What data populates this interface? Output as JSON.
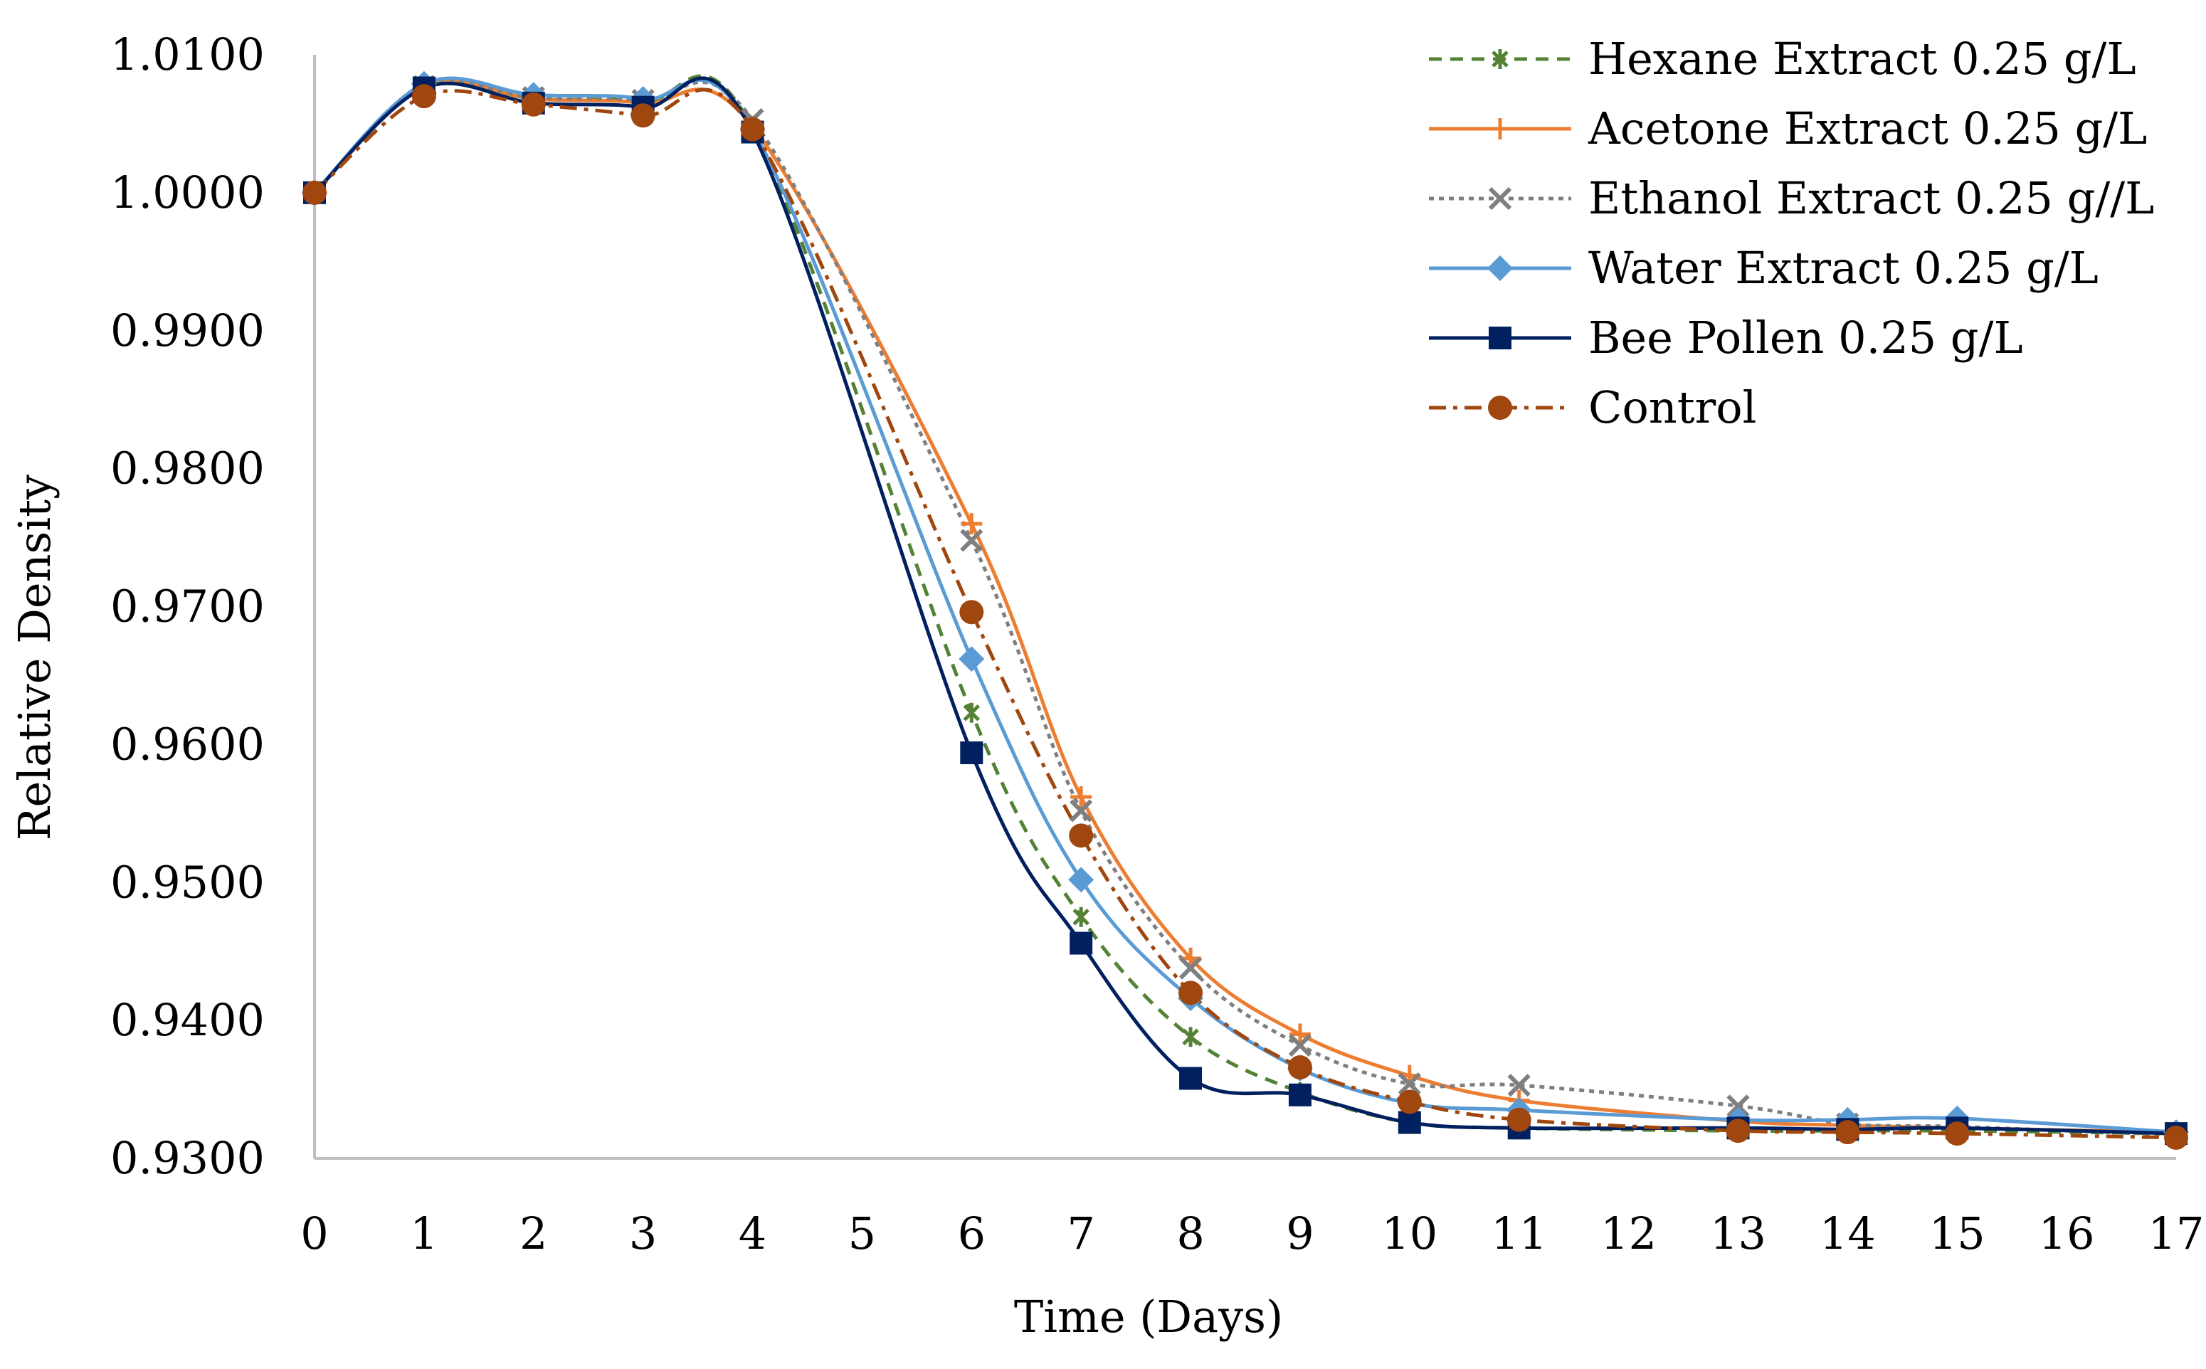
{
  "chart_data": {
    "type": "line",
    "title": "",
    "xlabel": "Time (Days)",
    "ylabel": "Relative Density",
    "xlim": [
      0,
      17
    ],
    "ylim": [
      0.93,
      1.01
    ],
    "x_ticks": [
      0,
      1,
      2,
      3,
      4,
      5,
      6,
      7,
      8,
      9,
      10,
      11,
      12,
      13,
      14,
      15,
      16,
      17
    ],
    "y_ticks": [
      0.93,
      0.94,
      0.95,
      0.96,
      0.97,
      0.98,
      0.99,
      1.0,
      1.01
    ],
    "y_tick_labels": [
      "0.9300",
      "0.9400",
      "0.9500",
      "0.9600",
      "0.9700",
      "0.9800",
      "0.9900",
      "1.0000",
      "1.0100"
    ],
    "x_tick_labels": [
      "0",
      "1",
      "2",
      "3",
      "4",
      "5",
      "6",
      "7",
      "8",
      "9",
      "10",
      "11",
      "12",
      "13",
      "14",
      "15",
      "16",
      "17"
    ],
    "grid": false,
    "legend_position": "top-right",
    "series": [
      {
        "name": "Hexane Extract 0.25 g/L",
        "color": "#548235",
        "marker": "asterisk",
        "dash": "dashed",
        "x": [
          0,
          1,
          2,
          3,
          4,
          6,
          7,
          8,
          9,
          10,
          11,
          13,
          14,
          15,
          17
        ],
        "y": [
          1.0,
          1.0077,
          1.0068,
          1.0066,
          1.0047,
          0.9623,
          0.9475,
          0.9388,
          0.9348,
          0.9326,
          0.9322,
          0.932,
          0.932,
          0.932,
          0.9318
        ]
      },
      {
        "name": "Acetone Extract 0.25 g/L",
        "color": "#ED7D31",
        "marker": "plus",
        "dash": "solid",
        "x": [
          0,
          1,
          2,
          3,
          4,
          6,
          7,
          8,
          9,
          10,
          11,
          13,
          14,
          15,
          17
        ],
        "y": [
          1.0,
          1.0078,
          1.0068,
          1.0065,
          1.0048,
          0.976,
          0.9562,
          0.9445,
          0.939,
          0.936,
          0.9342,
          0.9327,
          0.9324,
          0.9322,
          0.9319
        ]
      },
      {
        "name": "Ethanol Extract 0.25 g//L",
        "color": "#7F7F7F",
        "marker": "cross",
        "dash": "dotted",
        "x": [
          0,
          1,
          2,
          3,
          4,
          6,
          7,
          8,
          9,
          10,
          11,
          13,
          14,
          15,
          17
        ],
        "y": [
          1.0,
          1.0077,
          1.0069,
          1.0067,
          1.0053,
          0.9748,
          0.9552,
          0.9438,
          0.9382,
          0.9354,
          0.9353,
          0.9338,
          0.9325,
          0.9323,
          0.9317
        ]
      },
      {
        "name": "Water Extract 0.25 g/L",
        "color": "#5B9BD5",
        "marker": "diamond",
        "dash": "solid",
        "x": [
          0,
          1,
          2,
          3,
          4,
          6,
          7,
          8,
          9,
          10,
          11,
          13,
          14,
          15,
          17
        ],
        "y": [
          1.0,
          1.0079,
          1.0071,
          1.0068,
          1.0046,
          0.9662,
          0.9502,
          0.9416,
          0.9365,
          0.934,
          0.9335,
          0.9328,
          0.9328,
          0.9329,
          0.9319
        ]
      },
      {
        "name": "Bee Pollen 0.25 g/L",
        "color": "#002060",
        "marker": "square",
        "dash": "solid",
        "x": [
          0,
          1,
          2,
          3,
          4,
          6,
          7,
          8,
          9,
          10,
          11,
          13,
          14,
          15,
          17
        ],
        "y": [
          1.0,
          1.0076,
          1.0065,
          1.0062,
          1.0044,
          0.9594,
          0.9456,
          0.9358,
          0.9346,
          0.9326,
          0.9322,
          0.9322,
          0.9321,
          0.9322,
          0.9318
        ]
      },
      {
        "name": "Control",
        "color": "#A0460F",
        "marker": "circle",
        "dash": "dashdot",
        "x": [
          0,
          1,
          2,
          3,
          4,
          6,
          7,
          8,
          9,
          10,
          11,
          13,
          14,
          15,
          17
        ],
        "y": [
          1.0,
          1.007,
          1.0064,
          1.0056,
          1.0046,
          0.9696,
          0.9534,
          0.942,
          0.9366,
          0.9341,
          0.9328,
          0.932,
          0.9319,
          0.9318,
          0.9315
        ]
      }
    ]
  }
}
